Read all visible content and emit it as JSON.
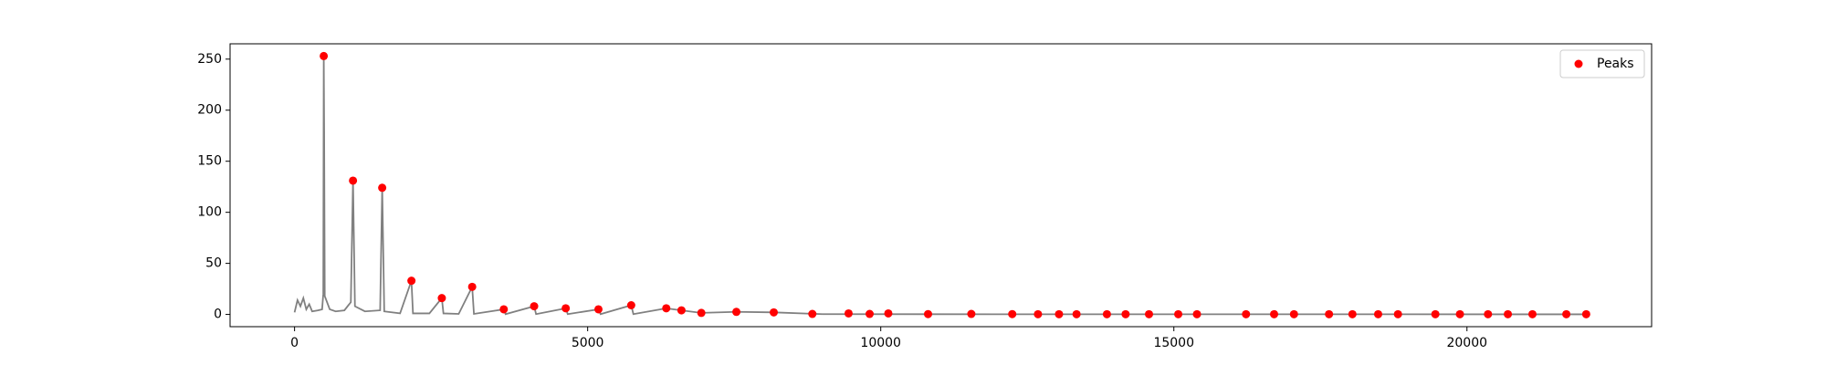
{
  "chart_data": {
    "type": "line",
    "xlim": [
      -1100,
      23150
    ],
    "xticks": [
      0,
      5000,
      10000,
      15000,
      20000
    ],
    "ylim": [
      -12,
      265
    ],
    "yticks": [
      0,
      50,
      100,
      150,
      200,
      250
    ],
    "legend": "upper right",
    "series": [
      {
        "type": "line",
        "color": "#808080",
        "x": [
          0,
          50,
          100,
          150,
          200,
          250,
          300,
          400,
          470,
          490,
          498,
          505,
          515,
          600,
          700,
          850,
          960,
          997,
          1030,
          1200,
          1460,
          1495,
          1530,
          1800,
          1994,
          2020,
          2300,
          2512,
          2540,
          2800,
          3030,
          3060,
          3569,
          3600,
          4087,
          4120,
          4626,
          4660,
          5184,
          5220,
          5743,
          5780,
          6341,
          6600,
          6939,
          7537,
          8175,
          9000,
          12000,
          16000,
          22050
        ],
        "values": [
          2,
          14,
          8,
          16,
          5,
          10,
          3,
          4,
          5,
          20,
          253,
          178,
          18,
          5,
          3,
          4,
          12,
          131,
          8,
          3,
          4,
          124,
          3,
          1,
          33,
          1,
          1,
          16,
          1,
          0.5,
          27,
          0.5,
          5,
          0.3,
          8,
          0.3,
          6,
          0.3,
          5,
          0.3,
          9,
          0.3,
          6,
          4,
          1.5,
          2.5,
          2,
          0.3,
          0.2,
          0.2,
          0.1
        ]
      },
      {
        "type": "scatter",
        "name": "Peaks",
        "color": "#ff0000",
        "x": [
          498,
          997,
          1495,
          1994,
          2512,
          3030,
          3569,
          4087,
          4626,
          5184,
          5743,
          6341,
          6600,
          6939,
          7537,
          8175,
          8833,
          9451,
          9810,
          10129,
          10807,
          11545,
          12243,
          12682,
          13041,
          13340,
          13858,
          14177,
          14576,
          15075,
          15394,
          16231,
          16710,
          17049,
          17647,
          18046,
          18485,
          18823,
          19461,
          19880,
          20359,
          20698,
          21117,
          21695,
          22034
        ],
        "values": [
          253,
          131,
          124,
          33,
          16,
          27,
          5,
          8,
          6,
          5,
          9,
          6,
          4,
          1.5,
          2.5,
          2,
          0.5,
          1,
          0.5,
          1,
          0.3,
          0.5,
          0.3,
          0.2,
          0.2,
          0.2,
          0.2,
          0.2,
          0.2,
          0.2,
          0.2,
          0.2,
          0.2,
          0.2,
          0.2,
          0.2,
          0.2,
          0.2,
          0.2,
          0.2,
          0.2,
          0.2,
          0.2,
          0.2,
          0.2
        ]
      }
    ]
  }
}
